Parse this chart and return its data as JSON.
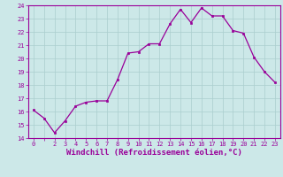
{
  "x": [
    0,
    1,
    2,
    3,
    4,
    5,
    6,
    7,
    8,
    9,
    10,
    11,
    12,
    13,
    14,
    15,
    16,
    17,
    18,
    19,
    20,
    21,
    22,
    23
  ],
  "y": [
    16.1,
    15.5,
    14.4,
    15.3,
    16.4,
    16.7,
    16.8,
    16.8,
    18.4,
    20.4,
    20.5,
    21.1,
    21.1,
    22.6,
    23.7,
    22.7,
    23.8,
    23.2,
    23.2,
    22.1,
    21.9,
    20.1,
    19.0,
    18.2
  ],
  "line_color": "#990099",
  "marker_color": "#990099",
  "bg_color": "#cce8e8",
  "grid_color": "#aacece",
  "xlabel": "Windchill (Refroidissement éolien,°C)",
  "xlabel_color": "#990099",
  "xlim_min": -0.5,
  "xlim_max": 23.5,
  "ylim": [
    14,
    24
  ],
  "yticks": [
    14,
    15,
    16,
    17,
    18,
    19,
    20,
    21,
    22,
    23,
    24
  ],
  "xtick_labels": [
    "0",
    "",
    "2",
    "3",
    "4",
    "5",
    "6",
    "7",
    "8",
    "9",
    "10",
    "11",
    "12",
    "13",
    "14",
    "15",
    "16",
    "17",
    "18",
    "19",
    "20",
    "21",
    "22",
    "23"
  ],
  "tick_color": "#990099",
  "tick_fontsize": 5.0,
  "xlabel_fontsize": 6.5,
  "border_color": "#990099",
  "linewidth": 0.9,
  "markersize": 2.0
}
